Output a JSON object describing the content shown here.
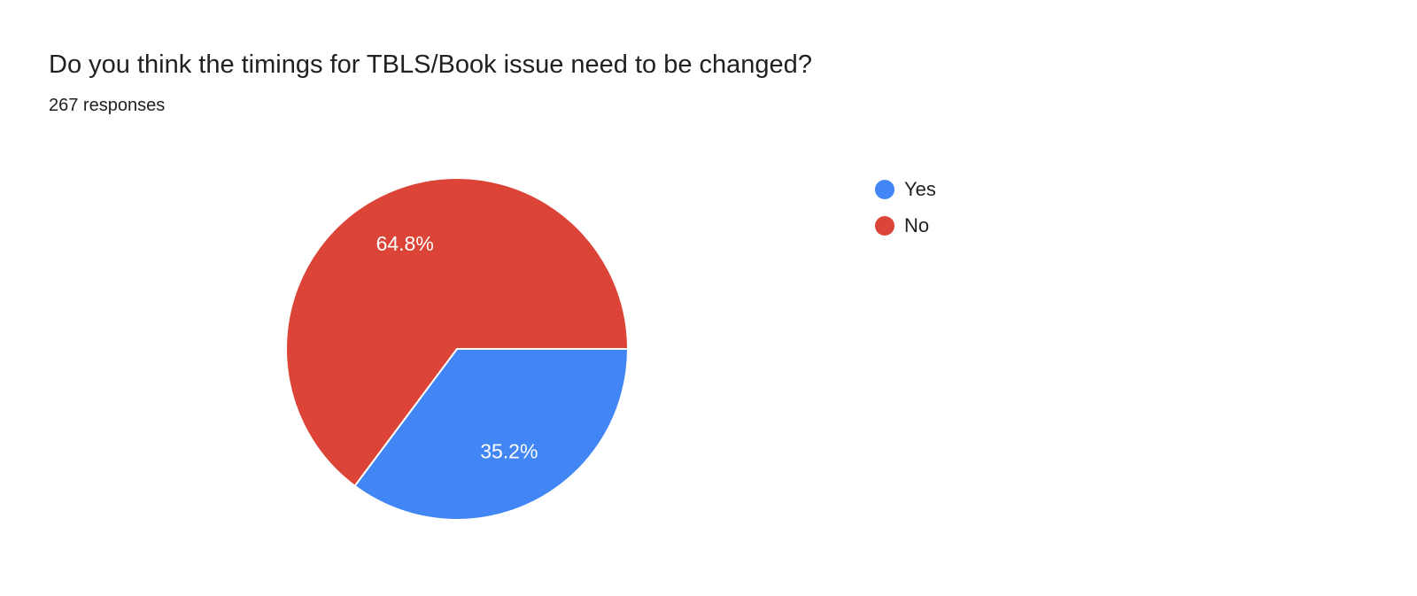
{
  "header": {
    "title": "Do you think the timings for TBLS/Book issue need to be changed?",
    "responses": "267 responses"
  },
  "chart_data": {
    "type": "pie",
    "title": "Do you think the timings for TBLS/Book issue need to be changed?",
    "responses_count": 267,
    "categories": [
      "Yes",
      "No"
    ],
    "values": [
      35.2,
      64.8
    ],
    "slice_labels": [
      "35.2%",
      "64.8%"
    ],
    "colors": [
      "#4285f4",
      "#db4437"
    ],
    "label_color": "#ffffff",
    "start_angle_deg": 0,
    "direction": "clockwise",
    "legend_position": "right"
  },
  "legend": {
    "items": [
      {
        "label": "Yes",
        "color": "#4285f4"
      },
      {
        "label": "No",
        "color": "#db4437"
      }
    ]
  }
}
